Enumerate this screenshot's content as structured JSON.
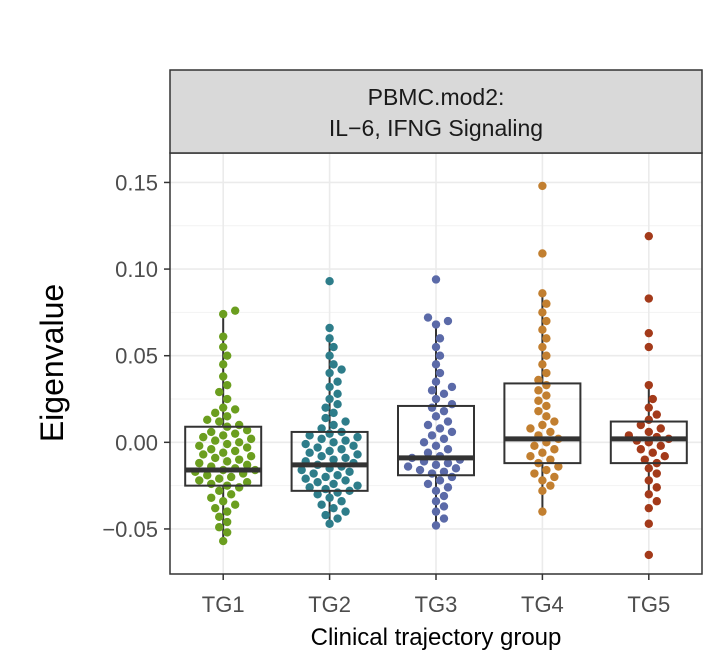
{
  "chart_data": {
    "type": "boxplot-beeswarm",
    "panel_title_line1": "PBMC.mod2:",
    "panel_title_line2": "IL−6, IFNG Signaling",
    "xlabel": "Clinical trajectory group",
    "ylabel": "Eigenvalue",
    "ylim": [
      -0.076,
      0.167
    ],
    "yticks": [
      -0.05,
      0.0,
      0.05,
      0.1,
      0.15
    ],
    "ytick_labels": [
      "−0.05",
      "0.00",
      "0.05",
      "0.10",
      "0.15"
    ],
    "grid": true,
    "categories": [
      "TG1",
      "TG2",
      "TG3",
      "TG4",
      "TG5"
    ],
    "colors": {
      "TG1": "#6b9e1f",
      "TG2": "#2e7d8a",
      "TG3": "#5b6aa8",
      "TG4": "#c27f30",
      "TG5": "#a33a1a",
      "strip_fill": "#d9d9d9",
      "grid": "#ebebeb",
      "box": "#333333"
    },
    "boxes": [
      {
        "group": "TG1",
        "q1": -0.025,
        "median": -0.016,
        "q3": 0.009,
        "whisker_low": -0.057,
        "whisker_high": 0.075
      },
      {
        "group": "TG2",
        "q1": -0.028,
        "median": -0.013,
        "q3": 0.006,
        "whisker_low": -0.047,
        "whisker_high": 0.058
      },
      {
        "group": "TG3",
        "q1": -0.019,
        "median": -0.009,
        "q3": 0.021,
        "whisker_low": -0.049,
        "whisker_high": 0.066
      },
      {
        "group": "TG4",
        "q1": -0.012,
        "median": 0.002,
        "q3": 0.034,
        "whisker_low": -0.04,
        "whisker_high": 0.085
      },
      {
        "group": "TG5",
        "q1": -0.012,
        "median": 0.002,
        "q3": 0.012,
        "whisker_low": -0.028,
        "whisker_high": 0.033
      }
    ],
    "points": {
      "TG1": [
        0.076,
        0.074,
        0.061,
        0.055,
        0.05,
        0.045,
        0.038,
        0.033,
        0.029,
        0.025,
        0.02,
        0.019,
        0.017,
        0.015,
        0.013,
        0.012,
        0.01,
        0.009,
        0.007,
        0.006,
        0.005,
        0.004,
        0.003,
        0.002,
        0.001,
        0.0,
        -0.001,
        -0.002,
        -0.003,
        -0.004,
        -0.005,
        -0.006,
        -0.007,
        -0.008,
        -0.009,
        -0.01,
        -0.011,
        -0.012,
        -0.013,
        -0.014,
        -0.015,
        -0.016,
        -0.016,
        -0.017,
        -0.018,
        -0.019,
        -0.02,
        -0.021,
        -0.022,
        -0.023,
        -0.024,
        -0.025,
        -0.026,
        -0.028,
        -0.03,
        -0.032,
        -0.034,
        -0.036,
        -0.038,
        -0.04,
        -0.043,
        -0.046,
        -0.049,
        -0.052,
        -0.057
      ],
      "TG2": [
        0.093,
        0.066,
        0.06,
        0.055,
        0.05,
        0.045,
        0.042,
        0.04,
        0.035,
        0.032,
        0.028,
        0.025,
        0.022,
        0.02,
        0.017,
        0.014,
        0.012,
        0.01,
        0.008,
        0.006,
        0.005,
        0.004,
        0.003,
        0.002,
        0.001,
        0.0,
        -0.001,
        -0.002,
        -0.003,
        -0.004,
        -0.005,
        -0.006,
        -0.007,
        -0.008,
        -0.009,
        -0.01,
        -0.011,
        -0.012,
        -0.013,
        -0.014,
        -0.015,
        -0.016,
        -0.017,
        -0.018,
        -0.019,
        -0.02,
        -0.021,
        -0.022,
        -0.023,
        -0.024,
        -0.025,
        -0.026,
        -0.027,
        -0.028,
        -0.029,
        -0.03,
        -0.032,
        -0.034,
        -0.036,
        -0.038,
        -0.04,
        -0.042,
        -0.044,
        -0.047
      ],
      "TG3": [
        0.094,
        0.072,
        0.07,
        0.068,
        0.06,
        0.055,
        0.05,
        0.045,
        0.04,
        0.035,
        0.032,
        0.03,
        0.028,
        0.025,
        0.022,
        0.02,
        0.018,
        0.015,
        0.012,
        0.01,
        0.008,
        0.006,
        0.004,
        0.002,
        0.0,
        -0.002,
        -0.004,
        -0.006,
        -0.008,
        -0.009,
        -0.01,
        -0.011,
        -0.012,
        -0.013,
        -0.014,
        -0.015,
        -0.016,
        -0.017,
        -0.018,
        -0.02,
        -0.022,
        -0.024,
        -0.026,
        -0.028,
        -0.031,
        -0.034,
        -0.037,
        -0.04,
        -0.044,
        -0.048
      ],
      "TG4": [
        0.148,
        0.109,
        0.086,
        0.08,
        0.075,
        0.07,
        0.065,
        0.06,
        0.055,
        0.05,
        0.045,
        0.04,
        0.036,
        0.033,
        0.03,
        0.027,
        0.024,
        0.021,
        0.018,
        0.015,
        0.012,
        0.01,
        0.008,
        0.006,
        0.004,
        0.002,
        0.0,
        -0.002,
        -0.004,
        -0.006,
        -0.008,
        -0.01,
        -0.012,
        -0.014,
        -0.016,
        -0.018,
        -0.02,
        -0.022,
        -0.025,
        -0.028,
        -0.04
      ],
      "TG5": [
        0.119,
        0.083,
        0.063,
        0.055,
        0.033,
        0.025,
        0.02,
        0.016,
        0.013,
        0.01,
        0.008,
        0.006,
        0.004,
        0.003,
        0.002,
        0.001,
        0.0,
        -0.002,
        -0.004,
        -0.006,
        -0.008,
        -0.01,
        -0.012,
        -0.015,
        -0.018,
        -0.022,
        -0.026,
        -0.03,
        -0.034,
        -0.038,
        -0.047,
        -0.065
      ]
    }
  }
}
